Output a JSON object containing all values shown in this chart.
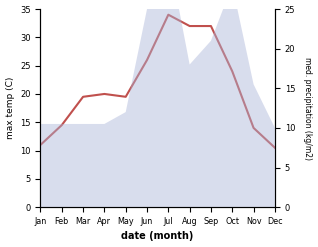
{
  "months": [
    "Jan",
    "Feb",
    "Mar",
    "Apr",
    "May",
    "Jun",
    "Jul",
    "Aug",
    "Sep",
    "Oct",
    "Nov",
    "Dec"
  ],
  "temp": [
    11.0,
    14.5,
    19.5,
    20.0,
    19.5,
    26.0,
    34.0,
    32.0,
    32.0,
    24.0,
    14.0,
    10.5
  ],
  "precip": [
    10.5,
    10.5,
    10.5,
    10.5,
    12.0,
    25.0,
    32.0,
    18.0,
    21.0,
    28.0,
    15.5,
    10.0
  ],
  "temp_color": "#c0504d",
  "precip_color": "#aab4d8",
  "ylabel_left": "max temp (C)",
  "ylabel_right": "med. precipitation (kg/m2)",
  "xlabel": "date (month)",
  "ylim_left": [
    0,
    35
  ],
  "ylim_right": [
    0,
    25
  ],
  "yticks_left": [
    0,
    5,
    10,
    15,
    20,
    25,
    30,
    35
  ],
  "yticks_right": [
    0,
    5,
    10,
    15,
    20,
    25
  ],
  "temp_linewidth": 1.5,
  "precip_alpha": 0.45
}
